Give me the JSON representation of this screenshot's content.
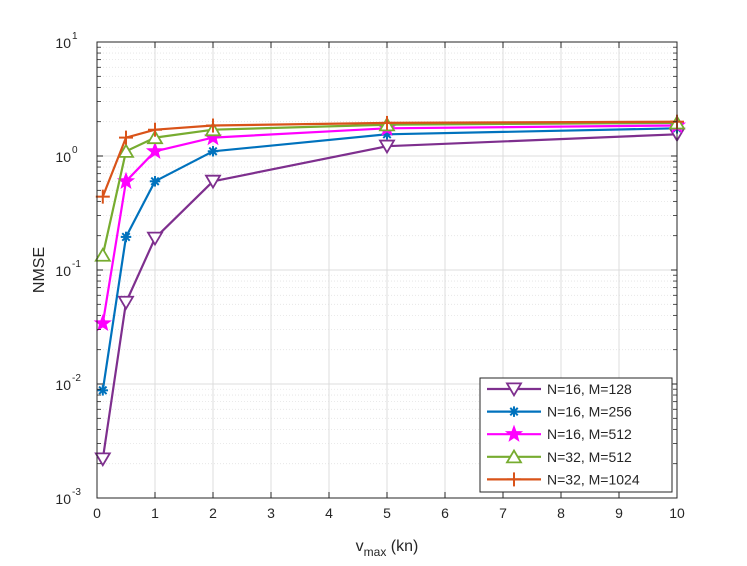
{
  "chart_data": {
    "type": "line",
    "title": "",
    "xlabel": "v",
    "xlabel_subscript": "max",
    "xlabel_suffix": " (kn)",
    "ylabel": "NMSE",
    "x_scale": "linear",
    "y_scale": "log",
    "xlim": [
      0,
      10
    ],
    "ylim": [
      0.001,
      10
    ],
    "grid": true,
    "legend_position": "bottom-right",
    "x_ticks": [
      0,
      1,
      2,
      3,
      4,
      5,
      6,
      7,
      8,
      9,
      10
    ],
    "x_tick_labels": [
      "0",
      "1",
      "2",
      "3",
      "4",
      "5",
      "6",
      "7",
      "8",
      "9",
      "10"
    ],
    "y_ticks": [
      {
        "value": 0.001,
        "base": "10",
        "exp": "-3"
      },
      {
        "value": 0.01,
        "base": "10",
        "exp": "-2"
      },
      {
        "value": 0.1,
        "base": "10",
        "exp": "-1"
      },
      {
        "value": 1,
        "base": "10",
        "exp": "0"
      },
      {
        "value": 10,
        "base": "10",
        "exp": "1"
      }
    ],
    "series": [
      {
        "name": "N=16, M=128",
        "color": "#7e2f8e",
        "marker": "triangle-down",
        "x": [
          0.1,
          0.5,
          1,
          2,
          5,
          10
        ],
        "y": [
          0.0022,
          0.052,
          0.19,
          0.6,
          1.22,
          1.55
        ]
      },
      {
        "name": "N=16, M=256",
        "color": "#0072bd",
        "marker": "asterisk",
        "x": [
          0.1,
          0.5,
          1,
          2,
          5,
          10
        ],
        "y": [
          0.0088,
          0.195,
          0.6,
          1.1,
          1.55,
          1.75
        ]
      },
      {
        "name": "N=16, M=512",
        "color": "#ff00ff",
        "marker": "star",
        "x": [
          0.1,
          0.5,
          1,
          2,
          5,
          10
        ],
        "y": [
          0.034,
          0.6,
          1.1,
          1.45,
          1.75,
          1.85
        ]
      },
      {
        "name": "N=32, M=512",
        "color": "#77ac30",
        "marker": "triangle-up",
        "x": [
          0.1,
          0.5,
          1,
          2,
          5,
          10
        ],
        "y": [
          0.135,
          1.1,
          1.45,
          1.7,
          1.88,
          1.95
        ]
      },
      {
        "name": "N=32, M=1024",
        "color": "#d95319",
        "marker": "plus",
        "x": [
          0.1,
          0.5,
          1,
          2,
          5,
          10
        ],
        "y": [
          0.44,
          1.45,
          1.7,
          1.85,
          1.95,
          2.0
        ]
      }
    ]
  }
}
